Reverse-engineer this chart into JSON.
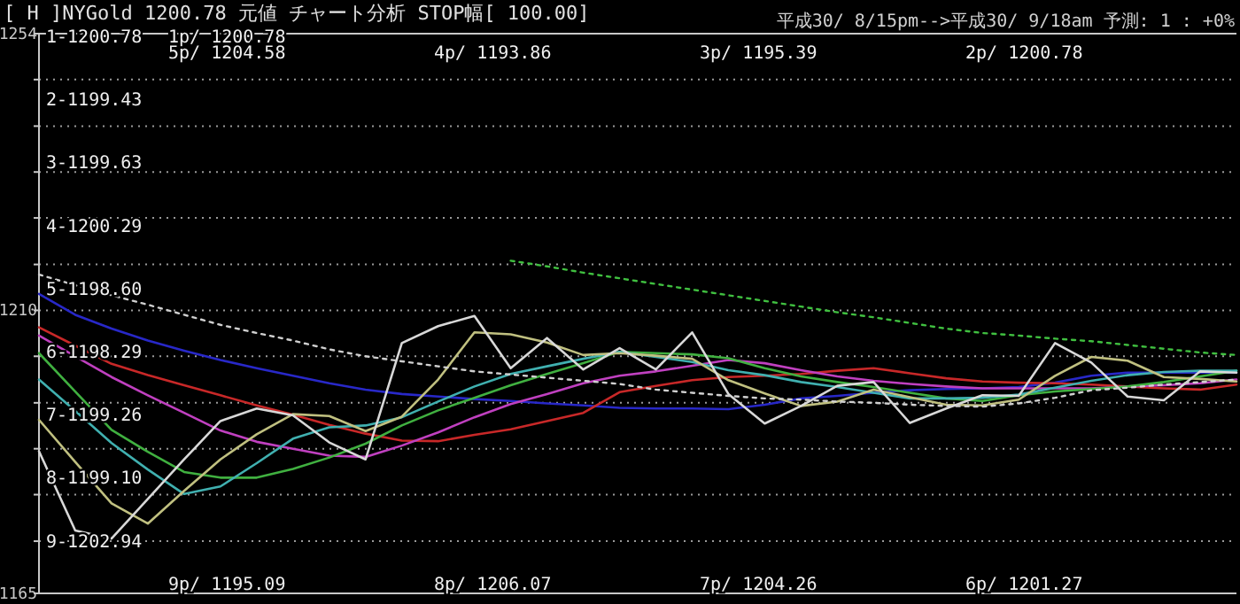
{
  "chart_data": {
    "type": "line",
    "title": "[ H ]NYGold   1200.78   元値   チャート分析   STOP幅[ 100.00]",
    "subtitle": "平成30/ 8/15pm-->平成30/ 9/18am 予測: 1 : +0%",
    "annotations": [
      "1-1200.78",
      "2-1199.43",
      "3-1199.63",
      "4-1200.29",
      "5-1198.60",
      "6-1198.29",
      "7-1199.26",
      "8-1199.10",
      "9-1202.94",
      "1p/ 1200.78",
      "5p/ 1204.58",
      "4p/ 1193.86",
      "3p/ 1195.39",
      "2p/ 1200.78",
      "9p/ 1195.09",
      "8p/ 1206.07",
      "7p/ 1204.26",
      "6p/ 1201.27"
    ],
    "categories": [
      null,
      null,
      null,
      null,
      null,
      null,
      null,
      null,
      null,
      null,
      null,
      null,
      null,
      null,
      null,
      null,
      null,
      null,
      null,
      null,
      null,
      null,
      null,
      null,
      null,
      null,
      null,
      null,
      null,
      null,
      null,
      null,
      null,
      null
    ],
    "ylim": [
      1165,
      1254
    ],
    "yticks": [
      1254,
      {
        "value": 1246.7,
        "label": null
      },
      {
        "value": 1239.3,
        "label": null
      },
      {
        "value": 1232,
        "label": null
      },
      {
        "value": 1224.7,
        "label": null
      },
      {
        "value": 1217.3,
        "label": null
      },
      1210,
      {
        "value": 1202.7,
        "label": null
      },
      {
        "value": 1195.3,
        "label": null
      },
      {
        "value": 1188,
        "label": null
      },
      {
        "value": 1180.7,
        "label": null
      },
      {
        "value": 1173.3,
        "label": null
      },
      1165
    ],
    "grid": "y",
    "tick_labels": "y",
    "series": [
      {
        "color": "#2828c8",
        "values": [
          1212.6,
          1209.3,
          1207.1,
          1205.2,
          1203.6,
          1202.1,
          1200.8,
          1199.6,
          1198.4,
          1197.4,
          1196.7,
          1196.3,
          1195.9,
          1195.6,
          1195.2,
          1194.9,
          1194.5,
          1194.4,
          1194.4,
          1194.3,
          1195,
          1196,
          1196.4,
          1196.9,
          1197.3,
          1197.5,
          1197.6,
          1197.8,
          1198.5,
          1199.6,
          1200.1,
          1200.1,
          1200.1,
          1200.1
        ]
      },
      {
        "color": "#c82828",
        "values": [
          1207.3,
          1204.4,
          1201.5,
          1199.7,
          1198.1,
          1196.5,
          1194.9,
          1193.4,
          1191.8,
          1190.4,
          1189.3,
          1189.2,
          1190.2,
          1191.1,
          1192.4,
          1193.7,
          1197,
          1198,
          1198.9,
          1199.4,
          1199.6,
          1199.9,
          1200.4,
          1200.8,
          1200,
          1199.2,
          1198.7,
          1198.5,
          1198.4,
          1198.2,
          1197.9,
          1197.6,
          1197.4,
          1198.2
        ]
      },
      {
        "color": "#c040c0",
        "values": [
          1206,
          1202.7,
          1199.4,
          1196.5,
          1193.7,
          1190.9,
          1189.1,
          1188,
          1186.9,
          1186.7,
          1188.5,
          1190.6,
          1193,
          1195.1,
          1196.7,
          1198.4,
          1199.6,
          1200.3,
          1201.2,
          1202.1,
          1201.6,
          1200.5,
          1199.5,
          1198.8,
          1198.3,
          1197.9,
          1197.6,
          1197.6,
          1197.6,
          1197.6,
          1197.9,
          1198.1,
          1198.4,
          1199
        ]
      },
      {
        "color": "#40b040",
        "values": [
          1203.2,
          1197.1,
          1191,
          1187.5,
          1184.3,
          1183.4,
          1183.4,
          1184.8,
          1186.6,
          1188.8,
          1191.7,
          1194.1,
          1196.1,
          1198.1,
          1199.9,
          1201.6,
          1203.4,
          1203.2,
          1203,
          1202.4,
          1200.8,
          1199.5,
          1198.6,
          1197.8,
          1196.9,
          1196,
          1195.6,
          1196.5,
          1197.1,
          1197.5,
          1197.9,
          1198.6,
          1199.5,
          1200.4
        ]
      },
      {
        "color": "#40b0b0",
        "values": [
          1199,
          1194,
          1188.9,
          1184.7,
          1180.8,
          1182,
          1185.7,
          1189.6,
          1191.4,
          1191.7,
          1193,
          1195.5,
          1197.9,
          1199.9,
          1201.1,
          1202.3,
          1203.4,
          1202.6,
          1201.8,
          1200.5,
          1199.7,
          1198.6,
          1197.8,
          1196.9,
          1196,
          1196,
          1196.1,
          1196.6,
          1197.7,
          1198.8,
          1199.7,
          1200.2,
          1200.4,
          1200.4
        ]
      },
      {
        "color": "#c0c080",
        "values": [
          1192.6,
          1185.9,
          1179.3,
          1176.1,
          1181.3,
          1186.3,
          1190.3,
          1193.5,
          1193.2,
          1190.8,
          1193.1,
          1199,
          1206.5,
          1206.2,
          1204.9,
          1202.9,
          1203.2,
          1202.8,
          1202.3,
          1198.9,
          1196.8,
          1194.8,
          1195.5,
          1197.4,
          1196.2,
          1195,
          1194.9,
          1195.8,
          1199.6,
          1202.6,
          1202,
          1199.4,
          1199.1,
          1198.7
        ]
      },
      {
        "color": "#d8d8d8",
        "values": [
          1187.6,
          1175,
          1173.7,
          1180,
          1186.3,
          1192.4,
          1194.4,
          1193.3,
          1189,
          1186.3,
          1204.8,
          1207.5,
          1209.1,
          1200.8,
          1205.6,
          1200.6,
          1204,
          1200.6,
          1206.5,
          1196.7,
          1192,
          1194.8,
          1198,
          1198.6,
          1192.1,
          1194.4,
          1196.5,
          1196.4,
          1204.8,
          1201.7,
          1196.3,
          1195.7,
          1200.3,
          1200.1
        ]
      },
      {
        "color": "#d0d0d0",
        "line_style": "dotted",
        "values": [
          1215.7,
          1214,
          1212.4,
          1210.9,
          1209.3,
          1207.7,
          1206.4,
          1205.2,
          1203.8,
          1202.7,
          1201.9,
          1201.1,
          1200.3,
          1199.8,
          1199.3,
          1198.8,
          1198.3,
          1197.4,
          1196.9,
          1196.4,
          1196,
          1195.8,
          1195.5,
          1195.3,
          1195,
          1194.8,
          1194.7,
          1195.2,
          1196.1,
          1197.3,
          1197.7,
          1198.2,
          1198.6,
          1199
        ]
      },
      {
        "color": "#40c040",
        "line_style": "dotted",
        "values": [
          null,
          null,
          null,
          null,
          null,
          null,
          null,
          null,
          null,
          null,
          null,
          null,
          null,
          1217.9,
          1217,
          1216,
          1215.1,
          1214.2,
          1213.3,
          1212.4,
          1211.5,
          1210.6,
          1209.7,
          1208.9,
          1208,
          1207.1,
          1206.4,
          1206,
          1205.5,
          1205.1,
          1204.5,
          1203.9,
          1203.3,
          1202.9
        ]
      }
    ]
  }
}
